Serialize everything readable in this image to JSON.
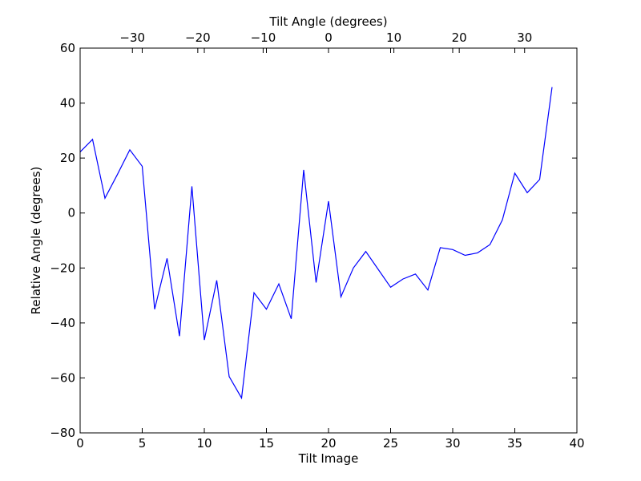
{
  "chart_data": {
    "type": "line",
    "title": "",
    "xlabel": "Tilt Image",
    "ylabel": "Relative Angle (degrees)",
    "top_xlabel": "Tilt Angle (degrees)",
    "xlim": [
      0,
      40
    ],
    "ylim": [
      -80,
      60
    ],
    "top_xlim": [
      -38,
      38
    ],
    "x_ticks": [
      0,
      5,
      10,
      15,
      20,
      25,
      30,
      35,
      40
    ],
    "y_ticks": [
      -80,
      -60,
      -40,
      -20,
      0,
      20,
      40,
      60
    ],
    "top_x_ticks": [
      -30,
      -20,
      -10,
      0,
      10,
      20,
      30
    ],
    "x_tick_labels": [
      "0",
      "5",
      "10",
      "15",
      "20",
      "25",
      "30",
      "35",
      "40"
    ],
    "y_tick_labels": [
      "−80",
      "−60",
      "−40",
      "−20",
      "0",
      "20",
      "40",
      "60"
    ],
    "top_x_tick_labels": [
      "−30",
      "−20",
      "−10",
      "0",
      "10",
      "20",
      "30"
    ],
    "grid": false,
    "legend": "none",
    "line_color": "#0000ff",
    "series": [
      {
        "x": [
          0,
          1,
          2,
          3,
          4,
          5,
          6,
          7,
          8,
          9,
          10,
          11,
          12,
          13,
          14,
          15,
          16,
          17,
          18,
          19,
          20,
          21,
          22,
          23,
          24,
          25,
          26,
          27,
          28,
          29,
          30,
          31,
          32,
          33,
          34,
          35,
          36,
          37,
          38
        ],
        "values": [
          22.2,
          26.8,
          5.4,
          14.0,
          23.0,
          17.0,
          -35.0,
          -16.5,
          -44.8,
          9.7,
          -46.2,
          -24.5,
          -59.5,
          -67.3,
          -29.0,
          -35.0,
          -25.8,
          -38.5,
          15.7,
          -25.3,
          4.3,
          -30.5,
          -20.0,
          -14.0,
          -20.5,
          -27.0,
          -24.0,
          -22.2,
          -28.0,
          -12.6,
          -13.3,
          -15.4,
          -14.5,
          -11.5,
          -2.5,
          14.5,
          7.4,
          12.2,
          45.8
        ]
      }
    ]
  }
}
